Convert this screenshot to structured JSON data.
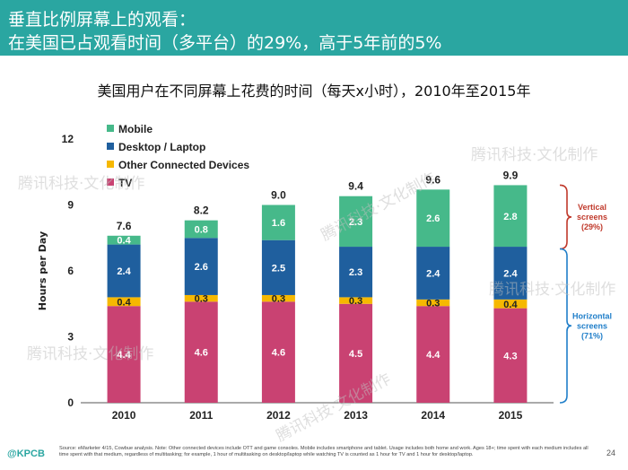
{
  "header": {
    "line1": "垂直比例屏幕上的观看：",
    "line2": "在美国已占观看时间（多平台）的29%，高于5年前的5%"
  },
  "watermark": "腾讯科技·文化制作",
  "chart_data": {
    "type": "bar",
    "stacked": true,
    "title": "美国用户在不同屏幕上花费的时间（每天x小时），2010年至2015年",
    "ylabel": "Hours per Day",
    "xlabel": "",
    "ylim": [
      0,
      12
    ],
    "yticks": [
      0,
      3,
      6,
      9,
      12
    ],
    "categories": [
      "2010",
      "2011",
      "2012",
      "2013",
      "2014",
      "2015"
    ],
    "series": [
      {
        "name": "TV",
        "color": "#c94272",
        "values": [
          4.4,
          4.6,
          4.6,
          4.5,
          4.4,
          4.3
        ]
      },
      {
        "name": "Other Connected Devices",
        "color": "#f6b800",
        "values": [
          0.4,
          0.3,
          0.3,
          0.3,
          0.3,
          0.4
        ]
      },
      {
        "name": "Desktop / Laptop",
        "color": "#1f5f9e",
        "values": [
          2.4,
          2.6,
          2.5,
          2.3,
          2.4,
          2.4
        ]
      },
      {
        "name": "Mobile",
        "color": "#46b98a",
        "values": [
          0.4,
          0.8,
          1.6,
          2.3,
          2.6,
          2.8
        ]
      }
    ],
    "totals": [
      "7.6",
      "8.2",
      "9.0",
      "9.4",
      "9.6",
      "9.9"
    ],
    "legend_order": [
      "Mobile",
      "Desktop / Laptop",
      "Other Connected Devices",
      "TV"
    ],
    "legend_position": "top-left",
    "grid": false,
    "annotations": [
      {
        "label": "Vertical screens",
        "share": "(29%)",
        "color": "#c0392b",
        "from": 7.0,
        "to": 9.9
      },
      {
        "label": "Horizontal screens",
        "share": "(71%)",
        "color": "#1f7ec9",
        "from": 0,
        "to": 7.0
      }
    ]
  },
  "footer": {
    "source": "Source: eMarketer 4/15, Cowbue analysis. Note: Other connected devices include OTT and game consoles. Mobile includes smartphone and tablet. Usage includes both home and work. Ages 18+; time spent with each medium includes all time spent with that medium, regardless of multitasking; for example, 1 hour of multitasking on desktop/laptop while watching TV is counted as 1 hour for TV and 1 hour for desktop/laptop.",
    "brand": "@KPCB",
    "page": "24"
  }
}
